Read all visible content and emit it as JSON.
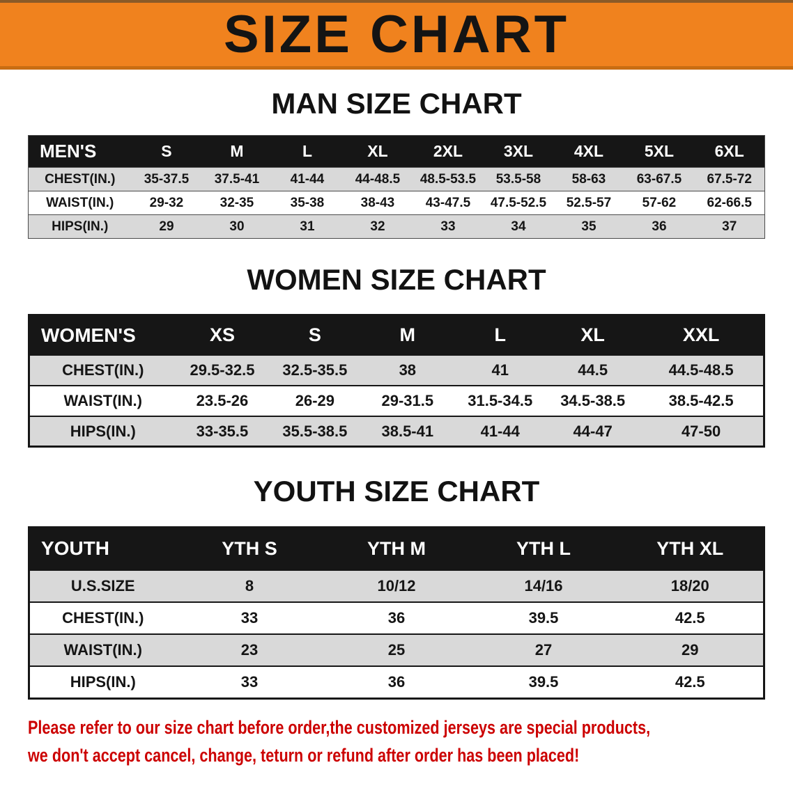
{
  "banner": {
    "title": "SIZE CHART",
    "bg_color": "#f0821e",
    "text_color": "#141414"
  },
  "sections": [
    {
      "heading": "MAN SIZE CHART",
      "table": {
        "header": [
          "MEN'S",
          "S",
          "M",
          "L",
          "XL",
          "2XL",
          "3XL",
          "4XL",
          "5XL",
          "6XL"
        ],
        "rows": [
          [
            "CHEST(IN.)",
            "35-37.5",
            "37.5-41",
            "41-44",
            "44-48.5",
            "48.5-53.5",
            "53.5-58",
            "58-63",
            "63-67.5",
            "67.5-72"
          ],
          [
            "WAIST(IN.)",
            "29-32",
            "32-35",
            "35-38",
            "38-43",
            "43-47.5",
            "47.5-52.5",
            "52.5-57",
            "57-62",
            "62-66.5"
          ],
          [
            "HIPS(IN.)",
            "29",
            "30",
            "31",
            "32",
            "33",
            "34",
            "35",
            "36",
            "37"
          ]
        ]
      }
    },
    {
      "heading": "WOMEN SIZE CHART",
      "table": {
        "header": [
          "WOMEN'S",
          "XS",
          "S",
          "M",
          "L",
          "XL",
          "XXL"
        ],
        "rows": [
          [
            "CHEST(IN.)",
            "29.5-32.5",
            "32.5-35.5",
            "38",
            "41",
            "44.5",
            "44.5-48.5"
          ],
          [
            "WAIST(IN.)",
            "23.5-26",
            "26-29",
            "29-31.5",
            "31.5-34.5",
            "34.5-38.5",
            "38.5-42.5"
          ],
          [
            "HIPS(IN.)",
            "33-35.5",
            "35.5-38.5",
            "38.5-41",
            "41-44",
            "44-47",
            "47-50"
          ]
        ]
      }
    },
    {
      "heading": "YOUTH SIZE CHART",
      "table": {
        "header": [
          "YOUTH",
          "YTH S",
          "YTH M",
          "YTH L",
          "YTH XL"
        ],
        "rows": [
          [
            "U.S.SIZE",
            "8",
            "10/12",
            "14/16",
            "18/20"
          ],
          [
            "CHEST(IN.)",
            "33",
            "36",
            "39.5",
            "42.5"
          ],
          [
            "WAIST(IN.)",
            "23",
            "25",
            "27",
            "29"
          ],
          [
            "HIPS(IN.)",
            "33",
            "36",
            "39.5",
            "42.5"
          ]
        ]
      }
    }
  ],
  "notice": {
    "color": "#cc0000",
    "lines": [
      "Please refer to our size chart before order,the customized jerseys are special products,",
      "we don't accept cancel, change, teturn or refund after order has been placed!"
    ]
  }
}
